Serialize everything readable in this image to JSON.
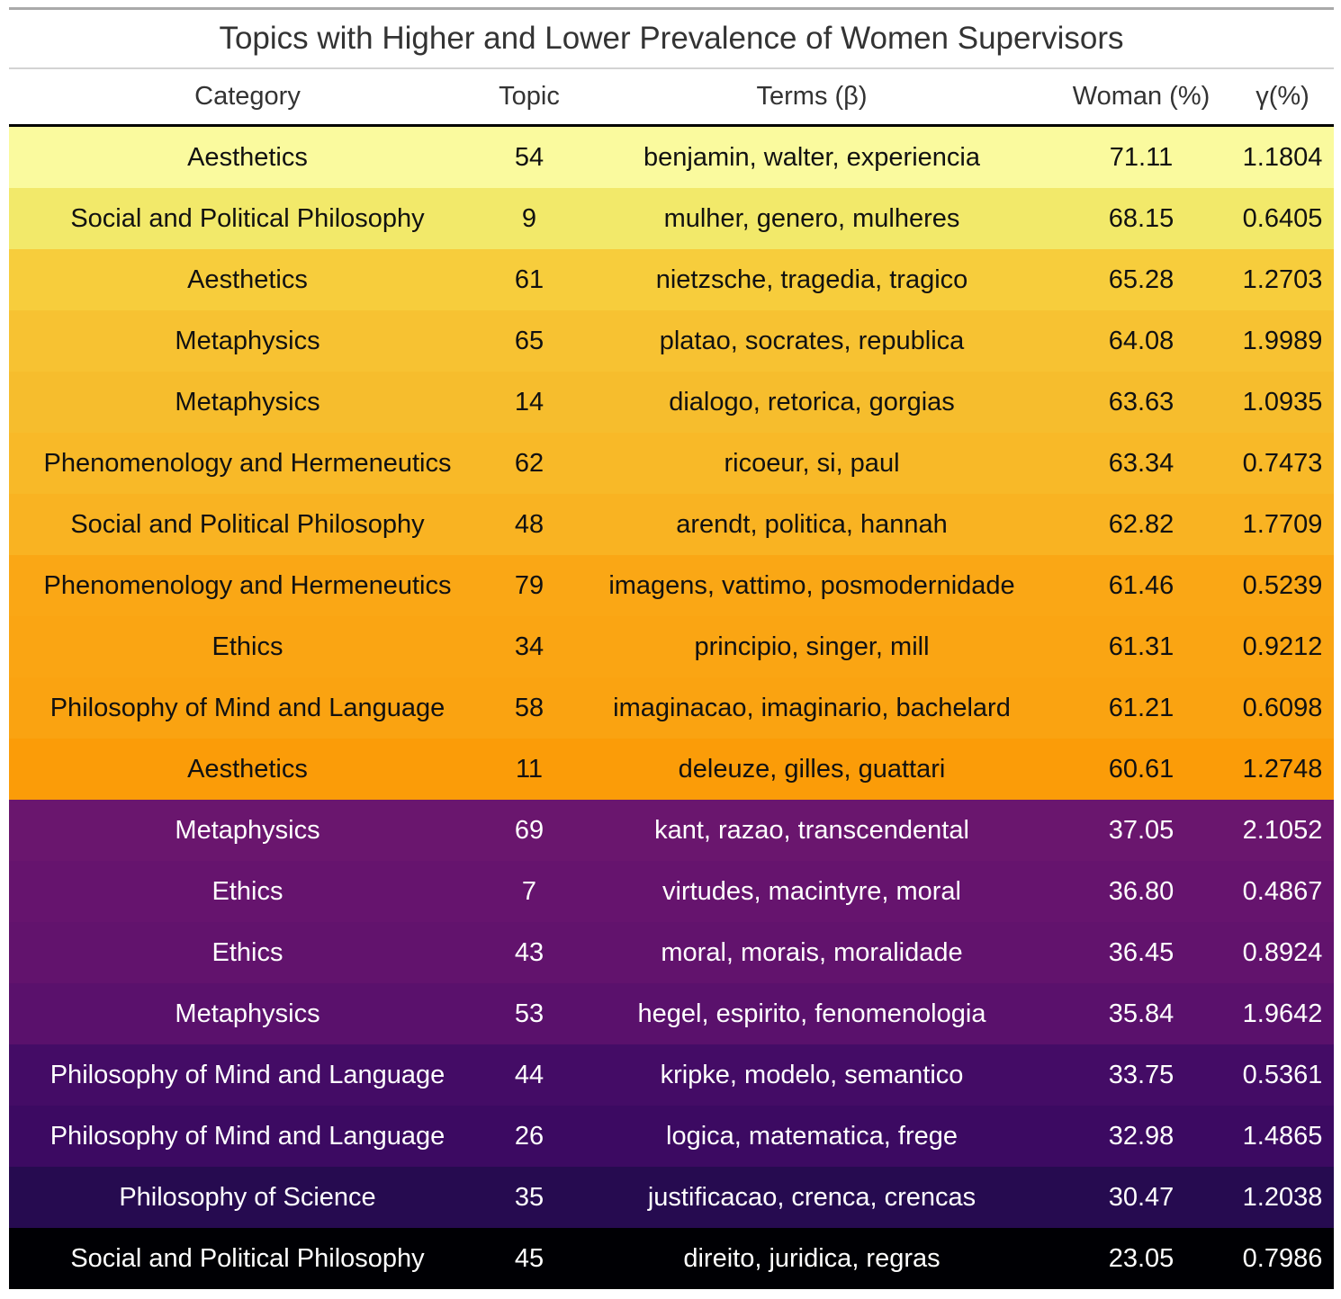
{
  "chart_data": {
    "type": "table",
    "title": "Topics with Higher and Lower Prevalence of Women Supervisors",
    "columns": [
      "Category",
      "Topic",
      "Terms (β)",
      "Woman (%)",
      "γ(%)"
    ],
    "rows": [
      {
        "category": "Aesthetics",
        "topic": "54",
        "terms": "benjamin, walter, experiencia",
        "woman": "71.11",
        "gamma": "1.1804",
        "bg": "#fafa9e",
        "fg": "#111111"
      },
      {
        "category": "Social and Political Philosophy",
        "topic": "9",
        "terms": "mulher, genero, mulheres",
        "woman": "68.15",
        "gamma": "0.6405",
        "bg": "#f2e96a",
        "fg": "#111111"
      },
      {
        "category": "Aesthetics",
        "topic": "61",
        "terms": "nietzsche, tragedia, tragico",
        "woman": "65.28",
        "gamma": "1.2703",
        "bg": "#f7cd3c",
        "fg": "#111111"
      },
      {
        "category": "Metaphysics",
        "topic": "65",
        "terms": "platao, socrates, republica",
        "woman": "64.08",
        "gamma": "1.9989",
        "bg": "#f7c232",
        "fg": "#111111"
      },
      {
        "category": "Metaphysics",
        "topic": "14",
        "terms": "dialogo, retorica, gorgias",
        "woman": "63.63",
        "gamma": "1.0935",
        "bg": "#f6bd2d",
        "fg": "#111111"
      },
      {
        "category": "Phenomenology and Hermeneutics",
        "topic": "62",
        "terms": "ricoeur, si, paul",
        "woman": "63.34",
        "gamma": "0.7473",
        "bg": "#f8b928",
        "fg": "#111111"
      },
      {
        "category": "Social and Political Philosophy",
        "topic": "48",
        "terms": "arendt, politica, hannah",
        "woman": "62.82",
        "gamma": "1.7709",
        "bg": "#f9b322",
        "fg": "#111111"
      },
      {
        "category": "Phenomenology and Hermeneutics",
        "topic": "79",
        "terms": "imagens, vattimo, posmodernidade",
        "woman": "61.46",
        "gamma": "0.5239",
        "bg": "#faa715",
        "fg": "#111111"
      },
      {
        "category": "Ethics",
        "topic": "34",
        "terms": "principio, singer, mill",
        "woman": "61.31",
        "gamma": "0.9212",
        "bg": "#faa513",
        "fg": "#111111"
      },
      {
        "category": "Philosophy of Mind and Language",
        "topic": "58",
        "terms": "imaginacao, imaginario, bachelard",
        "woman": "61.21",
        "gamma": "0.6098",
        "bg": "#faa311",
        "fg": "#111111"
      },
      {
        "category": "Aesthetics",
        "topic": "11",
        "terms": "deleuze, gilles, guattari",
        "woman": "60.61",
        "gamma": "1.2748",
        "bg": "#fb9c08",
        "fg": "#111111"
      },
      {
        "category": "Metaphysics",
        "topic": "69",
        "terms": "kant, razao, transcendental",
        "woman": "37.05",
        "gamma": "2.1052",
        "bg": "#6a166e",
        "fg": "#ffffff"
      },
      {
        "category": "Ethics",
        "topic": "7",
        "terms": "virtudes, macintyre, moral",
        "woman": "36.80",
        "gamma": "0.4867",
        "bg": "#66146e",
        "fg": "#ffffff"
      },
      {
        "category": "Ethics",
        "topic": "43",
        "terms": "moral, morais, moralidade",
        "woman": "36.45",
        "gamma": "0.8924",
        "bg": "#62136d",
        "fg": "#ffffff"
      },
      {
        "category": "Metaphysics",
        "topic": "53",
        "terms": "hegel, espirito, fenomenologia",
        "woman": "35.84",
        "gamma": "1.9642",
        "bg": "#5a116c",
        "fg": "#ffffff"
      },
      {
        "category": "Philosophy of Mind and Language",
        "topic": "44",
        "terms": "kripke, modelo, semantico",
        "woman": "33.75",
        "gamma": "0.5361",
        "bg": "#440c66",
        "fg": "#ffffff"
      },
      {
        "category": "Philosophy of Mind and Language",
        "topic": "26",
        "terms": "logica, matematica, frege",
        "woman": "32.98",
        "gamma": "1.4865",
        "bg": "#3c0a62",
        "fg": "#ffffff"
      },
      {
        "category": "Philosophy of Science",
        "topic": "35",
        "terms": "justificacao, crenca, crencas",
        "woman": "30.47",
        "gamma": "1.2038",
        "bg": "#260b50",
        "fg": "#ffffff"
      },
      {
        "category": "Social and Political Philosophy",
        "topic": "45",
        "terms": "direito, juridica, regras",
        "woman": "23.05",
        "gamma": "0.7986",
        "bg": "#000004",
        "fg": "#ffffff"
      }
    ]
  }
}
